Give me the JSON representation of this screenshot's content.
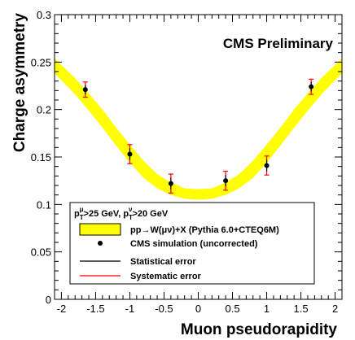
{
  "chart_data": {
    "type": "line",
    "title": "",
    "xlabel": "Muon pseudorapidity",
    "ylabel": "Charge asymmetry",
    "xlim": [
      -2.1,
      2.1
    ],
    "ylim": [
      0,
      0.3
    ],
    "grid": false,
    "legend_position": "bottom-left",
    "x_ticks": [
      -2,
      -1.5,
      -1,
      -0.5,
      0,
      0.5,
      1,
      1.5,
      2
    ],
    "x_tick_labels": [
      "-2",
      "-1.5",
      "-1",
      "-0.5",
      "0",
      "0.5",
      "1",
      "1.5",
      "2"
    ],
    "y_ticks": [
      0,
      0.05,
      0.1,
      0.15,
      0.2,
      0.25,
      0.3
    ],
    "y_tick_labels": [
      "0",
      "0.05",
      "0.1",
      "0.15",
      "0.2",
      "0.25",
      "0.3"
    ],
    "annotation": "CMS Preliminary",
    "legend_header": "p_T^μ>25 GeV, p_T^ν>20 GeV",
    "legend_header_parts": {
      "p1": "p",
      "sub1": "T",
      "sup1": "μ",
      "txt1": ">25 GeV, ",
      "p2": "p",
      "sub2": "T",
      "sup2": "ν",
      "txt2": ">20 GeV"
    },
    "band": {
      "name": "pp→W(μν)+X (Pythia 6.0+CTEQ6M)",
      "color": "#ffff00",
      "x": [
        -2.1,
        -2.0,
        -1.8,
        -1.6,
        -1.4,
        -1.2,
        -1.0,
        -0.8,
        -0.6,
        -0.4,
        -0.2,
        0.0,
        0.2,
        0.4,
        0.6,
        0.8,
        1.0,
        1.2,
        1.4,
        1.6,
        1.8,
        2.0,
        2.1
      ],
      "low": [
        0.238,
        0.231,
        0.216,
        0.199,
        0.181,
        0.162,
        0.144,
        0.128,
        0.117,
        0.11,
        0.106,
        0.105,
        0.106,
        0.11,
        0.117,
        0.128,
        0.144,
        0.162,
        0.181,
        0.199,
        0.216,
        0.231,
        0.238
      ],
      "high": [
        0.254,
        0.247,
        0.233,
        0.217,
        0.2,
        0.181,
        0.163,
        0.146,
        0.132,
        0.123,
        0.117,
        0.116,
        0.117,
        0.123,
        0.132,
        0.146,
        0.163,
        0.181,
        0.2,
        0.217,
        0.233,
        0.247,
        0.254
      ]
    },
    "series": [
      {
        "name": "CMS simulation (uncorrected)",
        "color": "#000000",
        "x": [
          -1.65,
          -1.0,
          -0.4,
          0.4,
          1.0,
          1.65
        ],
        "y": [
          0.221,
          0.153,
          0.122,
          0.125,
          0.141,
          0.224
        ],
        "stat_err": [
          0.005,
          0.006,
          0.006,
          0.006,
          0.006,
          0.005
        ],
        "syst_err": [
          0.008,
          0.01,
          0.01,
          0.01,
          0.01,
          0.008
        ]
      }
    ],
    "legend_entries": {
      "band": "pp→W(μν)+X (Pythia 6.0+CTEQ6M)",
      "points": "CMS simulation (uncorrected)",
      "stat": "Statistical error",
      "syst": "Systematic error"
    },
    "colors": {
      "band": "#ffff00",
      "stat": "#000000",
      "syst": "#ff0000",
      "points": "#000000"
    }
  }
}
